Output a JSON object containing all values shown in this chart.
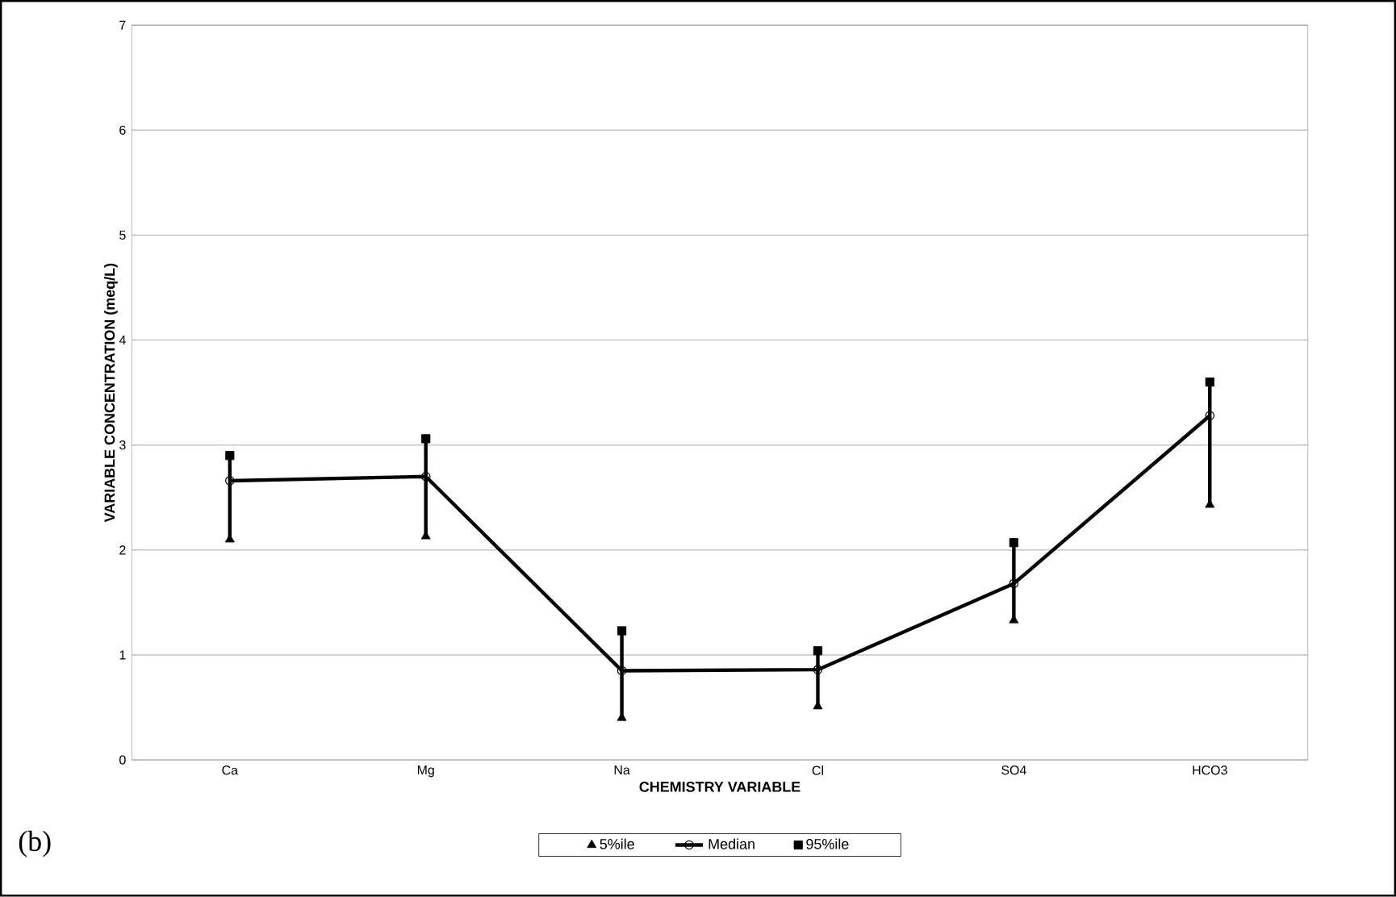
{
  "chart_data": {
    "type": "line",
    "xlabel": "CHEMISTRY  VARIABLE",
    "ylabel": "VARIABLE  CONCENTRATION  (meq/L)",
    "categories": [
      "Ca",
      "Mg",
      "Na",
      "Cl",
      "SO4",
      "HCO3"
    ],
    "series": [
      {
        "name": "5%ile",
        "type": "scatter",
        "marker": "triangle",
        "color": "#000000",
        "values": [
          2.1,
          2.13,
          0.4,
          0.51,
          1.33,
          2.43
        ]
      },
      {
        "name": "Median",
        "marker": "circle",
        "line_style": "solid",
        "color": "#000000",
        "values": [
          2.66,
          2.7,
          0.85,
          0.86,
          1.68,
          3.28
        ],
        "errors": [
          [
            2.1,
            2.9
          ],
          [
            2.13,
            3.06
          ],
          [
            0.4,
            1.23
          ],
          [
            0.51,
            1.04
          ],
          [
            1.33,
            2.07
          ],
          [
            2.43,
            3.6
          ]
        ]
      },
      {
        "name": "95%ile",
        "type": "scatter",
        "marker": "square",
        "color": "#000000",
        "values": [
          2.9,
          3.06,
          1.23,
          1.04,
          2.07,
          3.6
        ]
      }
    ],
    "ylim": [
      0,
      7
    ],
    "yticks": [
      0,
      1,
      2,
      3,
      4,
      5,
      6,
      7
    ],
    "grid": "y",
    "legend": "bottom",
    "annotations": [
      "(b)"
    ]
  }
}
